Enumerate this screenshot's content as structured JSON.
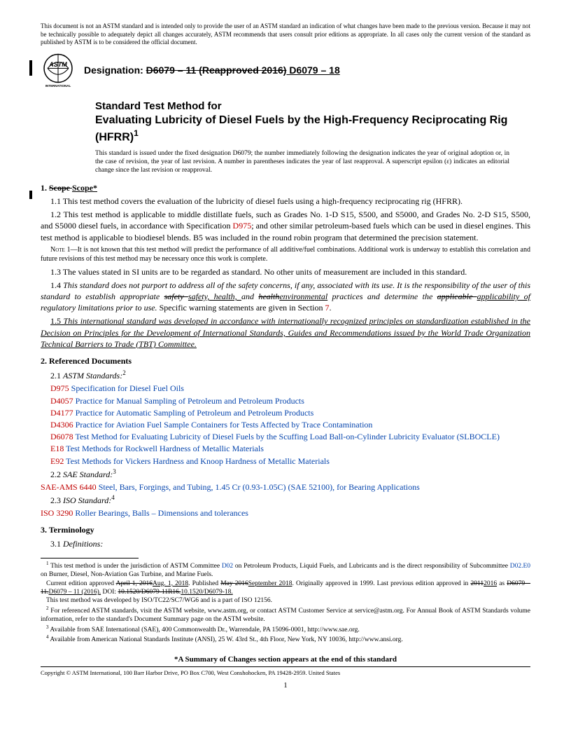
{
  "disclaimer": "This document is not an ASTM standard and is intended only to provide the user of an ASTM standard an indication of what changes have been made to the previous version. Because it may not be technically possible to adequately depict all changes accurately, ASTM recommends that users consult prior editions as appropriate. In all cases only the current version of the standard as published by ASTM is to be considered the official document.",
  "designation_label": "Designation: ",
  "designation_old": "D6079 – 11 (Reapproved 2016)",
  "designation_new": " D6079 – 18",
  "logo_text_top": "ASTM",
  "logo_text_bottom": "INTERNATIONAL",
  "title_prefix": "Standard Test Method for",
  "title_main": "Evaluating Lubricity of Diesel Fuels by the High-Frequency Reciprocating Rig (HFRR)",
  "title_sup": "1",
  "issuance": "This standard is issued under the fixed designation D6079; the number immediately following the designation indicates the year of original adoption or, in the case of revision, the year of last revision. A number in parentheses indicates the year of last reapproval. A superscript epsilon (ε) indicates an editorial change since the last revision or reapproval.",
  "s1_head_num": "1. ",
  "s1_head_old": "Scope ",
  "s1_head_new": "Scope*",
  "s1_1": "1.1 This test method covers the evaluation of the lubricity of diesel fuels using a high-frequency reciprocating rig (HFRR).",
  "s1_2a": "1.2 This test method is applicable to middle distillate fuels, such as Grades No. 1-D S15, S500, and S5000, and Grades No. 2-D S15, S500, and S5000 diesel fuels, in accordance with Specification ",
  "s1_2_link": "D975",
  "s1_2b": "; and other similar petroleum-based fuels which can be used in diesel engines. This test method is applicable to biodiesel blends. B5 was included in the round robin program that determined the precision statement.",
  "note1_label": "Note",
  "note1_text": " 1—It is not known that this test method will predict the performance of all additive/fuel combinations. Additional work is underway to establish this correlation and future revisions of this test method may be necessary once this work is complete.",
  "s1_3": "1.3 The values stated in SI units are to be regarded as standard. No other units of measurement are included in this standard.",
  "s1_4_pre": "1.4 ",
  "s1_4_a": "This standard does not purport to address all of the safety concerns, if any, associated with its use. It is the responsibility of the user of this standard to establish appropriate ",
  "s1_4_strike1": "safety ",
  "s1_4_ins1": "safety, health, ",
  "s1_4_mid": "and ",
  "s1_4_strike2": "health",
  "s1_4_ins2": "environmental",
  "s1_4_b": " practices and determine the ",
  "s1_4_strike3": "applicable ",
  "s1_4_ins3": "applicability of",
  "s1_4_c": " regulatory limitations prior to use.",
  "s1_4_tail": " Specific warning statements are given in Section ",
  "s1_4_seclink": "7",
  "s1_4_period": ".",
  "s1_5_num": "1.5 ",
  "s1_5": "This international standard was developed in accordance with internationally recognized principles on standardization established in the Decision on Principles for the Development of International Standards, Guides and Recommendations issued by the World Trade Organization Technical Barriers to Trade (TBT) Committee.",
  "s2_head": "2. Referenced Documents",
  "s2_1_num": "2.1 ",
  "s2_1_label": "ASTM Standards:",
  "s2_1_sup": "2",
  "refs_astm": [
    {
      "code": "D975",
      "title": " Specification for Diesel Fuel Oils"
    },
    {
      "code": "D4057",
      "title": " Practice for Manual Sampling of Petroleum and Petroleum Products"
    },
    {
      "code": "D4177",
      "title": " Practice for Automatic Sampling of Petroleum and Petroleum Products"
    },
    {
      "code": "D4306",
      "title": " Practice for Aviation Fuel Sample Containers for Tests Affected by Trace Contamination"
    },
    {
      "code": "D6078",
      "title": " Test Method for Evaluating Lubricity of Diesel Fuels by the Scuffing Load Ball-on-Cylinder Lubricity Evaluator (SLBOCLE)"
    },
    {
      "code": "E18",
      "title": " Test Methods for Rockwell Hardness of Metallic Materials"
    },
    {
      "code": "E92",
      "title": " Test Methods for Vickers Hardness and Knoop Hardness of Metallic Materials"
    }
  ],
  "s2_2_num": "2.2 ",
  "s2_2_label": "SAE Standard:",
  "s2_2_sup": "3",
  "ref_sae_code": "SAE-AMS 6440",
  "ref_sae_title": " Steel, Bars, Forgings, and Tubing, 1.45 Cr (0.93-1.05C) (SAE 52100), for Bearing Applications",
  "s2_3_num": "2.3 ",
  "s2_3_label": "ISO Standard:",
  "s2_3_sup": "4",
  "ref_iso_code": "ISO 3290",
  "ref_iso_title": " Roller Bearings, Balls – Dimensions and tolerances",
  "s3_head": "3. Terminology",
  "s3_1_num": "3.1 ",
  "s3_1_label": "Definitions:",
  "fn1_sup": "1",
  "fn1_a": " This test method is under the jurisdiction of ASTM Committee ",
  "fn1_link1": "D02",
  "fn1_b": " on Petroleum Products, Liquid Fuels, and Lubricants and is the direct responsibility of Subcommittee ",
  "fn1_link2": "D02.E0",
  "fn1_c": " on Burner, Diesel, Non-Aviation Gas Turbine, and Marine Fuels.",
  "fn1_para2_a": "Current edition approved ",
  "fn1_p2_strike1": "April 1, 2016",
  "fn1_p2_ins1": "Aug. 1, 2018",
  "fn1_p2_b": ". Published ",
  "fn1_p2_strike2": "May 2016",
  "fn1_p2_ins2": "September 2018",
  "fn1_p2_c": ". Originally approved in 1999. Last previous edition approved in ",
  "fn1_p2_strike3": "2011",
  "fn1_p2_ins3": "2016",
  "fn1_p2_d": " as ",
  "fn1_p2_strike4": "D6079 – 11.",
  "fn1_p2_ins4": "D6079 – 11 (2016).",
  "fn1_p2_e": " DOI: ",
  "fn1_p2_strike5": "10.1520/D6079-11R16.",
  "fn1_p2_ins5": "10.1520/D6079-18.",
  "fn1_para3": "This test method was developed by ISO/TC22/SC7/WG6 and is a part of ISO 12156.",
  "fn2_sup": "2",
  "fn2": " For referenced ASTM standards, visit the ASTM website, www.astm.org, or contact ASTM Customer Service at service@astm.org. For Annual Book of ASTM Standards volume information, refer to the standard's Document Summary page on the ASTM website.",
  "fn3_sup": "3",
  "fn3": " Available from SAE International (SAE), 400 Commonwealth Dr., Warrendale, PA 15096-0001, http://www.sae.org.",
  "fn4_sup": "4",
  "fn4": " Available from American National Standards Institute (ANSI), 25 W. 43rd St., 4th Floor, New York, NY 10036, http://www.ansi.org.",
  "summary_line": "*A Summary of Changes section appears at the end of this standard",
  "copyright": "Copyright © ASTM International, 100 Barr Harbor Drive, PO Box C700, West Conshohocken, PA 19428-2959. United States",
  "page_num": "1"
}
